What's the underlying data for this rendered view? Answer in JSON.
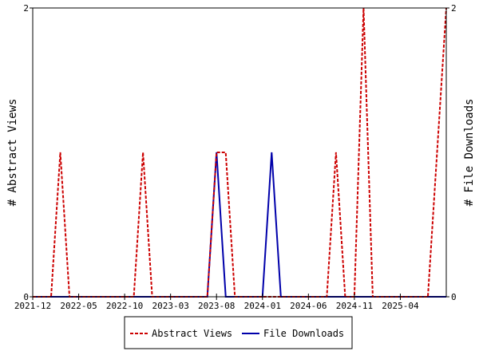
{
  "chart_data": {
    "type": "line",
    "x_tick_labels": [
      "2021-12",
      "2022-05",
      "2022-10",
      "2023-03",
      "2023-08",
      "2024-01",
      "2024-06",
      "2024-11",
      "2025-04"
    ],
    "x_range": [
      "2021-12",
      "2025-09"
    ],
    "ylabel_left": "# Abstract Views",
    "ylabel_right": "# File Downloads",
    "y_left_ticks": [
      "0",
      "2"
    ],
    "y_right_ticks": [
      "0",
      "2"
    ],
    "ylim_left": [
      0,
      2
    ],
    "ylim_right": [
      0,
      2
    ],
    "grid": false,
    "legend_position": "bottom",
    "series": [
      {
        "name": "Abstract Views",
        "color": "#cc0000",
        "style": "dashed",
        "axis": "left",
        "points": [
          [
            "2021-12",
            0
          ],
          [
            "2022-01",
            0
          ],
          [
            "2022-02",
            0
          ],
          [
            "2022-03",
            1
          ],
          [
            "2022-04",
            0
          ],
          [
            "2022-05",
            0
          ],
          [
            "2022-06",
            0
          ],
          [
            "2022-07",
            0
          ],
          [
            "2022-08",
            0
          ],
          [
            "2022-09",
            0
          ],
          [
            "2022-10",
            0
          ],
          [
            "2022-11",
            0
          ],
          [
            "2022-12",
            1
          ],
          [
            "2023-01",
            0
          ],
          [
            "2023-02",
            0
          ],
          [
            "2023-03",
            0
          ],
          [
            "2023-04",
            0
          ],
          [
            "2023-05",
            0
          ],
          [
            "2023-06",
            0
          ],
          [
            "2023-07",
            0
          ],
          [
            "2023-08",
            1
          ],
          [
            "2023-09",
            1
          ],
          [
            "2023-10",
            0
          ],
          [
            "2023-11",
            0
          ],
          [
            "2023-12",
            0
          ],
          [
            "2024-01",
            0
          ],
          [
            "2024-02",
            0
          ],
          [
            "2024-03",
            0
          ],
          [
            "2024-04",
            0
          ],
          [
            "2024-05",
            0
          ],
          [
            "2024-06",
            0
          ],
          [
            "2024-07",
            0
          ],
          [
            "2024-08",
            0
          ],
          [
            "2024-09",
            1
          ],
          [
            "2024-10",
            0
          ],
          [
            "2024-11",
            0
          ],
          [
            "2024-12",
            2
          ],
          [
            "2025-01",
            0
          ],
          [
            "2025-02",
            0
          ],
          [
            "2025-03",
            0
          ],
          [
            "2025-04",
            0
          ],
          [
            "2025-05",
            0
          ],
          [
            "2025-06",
            0
          ],
          [
            "2025-07",
            0
          ],
          [
            "2025-08",
            1
          ],
          [
            "2025-09",
            2
          ]
        ]
      },
      {
        "name": "File Downloads",
        "color": "#0000aa",
        "style": "solid",
        "axis": "right",
        "points": [
          [
            "2021-12",
            0
          ],
          [
            "2022-01",
            0
          ],
          [
            "2022-02",
            0
          ],
          [
            "2022-03",
            0
          ],
          [
            "2022-04",
            0
          ],
          [
            "2022-05",
            0
          ],
          [
            "2022-06",
            0
          ],
          [
            "2022-07",
            0
          ],
          [
            "2022-08",
            0
          ],
          [
            "2022-09",
            0
          ],
          [
            "2022-10",
            0
          ],
          [
            "2022-11",
            0
          ],
          [
            "2022-12",
            0
          ],
          [
            "2023-01",
            0
          ],
          [
            "2023-02",
            0
          ],
          [
            "2023-03",
            0
          ],
          [
            "2023-04",
            0
          ],
          [
            "2023-05",
            0
          ],
          [
            "2023-06",
            0
          ],
          [
            "2023-07",
            0
          ],
          [
            "2023-08",
            1
          ],
          [
            "2023-09",
            0
          ],
          [
            "2023-10",
            0
          ],
          [
            "2023-11",
            0
          ],
          [
            "2023-12",
            0
          ],
          [
            "2024-01",
            0
          ],
          [
            "2024-02",
            1
          ],
          [
            "2024-03",
            0
          ],
          [
            "2024-04",
            0
          ],
          [
            "2024-05",
            0
          ],
          [
            "2024-06",
            0
          ],
          [
            "2024-07",
            0
          ],
          [
            "2024-08",
            0
          ],
          [
            "2024-09",
            0
          ],
          [
            "2024-10",
            0
          ],
          [
            "2024-11",
            0
          ],
          [
            "2024-12",
            0
          ],
          [
            "2025-01",
            0
          ],
          [
            "2025-02",
            0
          ],
          [
            "2025-03",
            0
          ],
          [
            "2025-04",
            0
          ],
          [
            "2025-05",
            0
          ],
          [
            "2025-06",
            0
          ],
          [
            "2025-07",
            0
          ],
          [
            "2025-08",
            0
          ],
          [
            "2025-09",
            0
          ]
        ]
      }
    ]
  }
}
